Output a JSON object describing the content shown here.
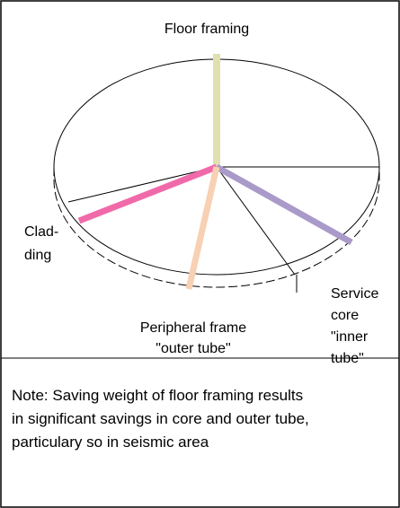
{
  "diagram": {
    "labels": {
      "floor": "Floor framing",
      "cladding": [
        "Clad-",
        "ding"
      ],
      "core": [
        "Service",
        "core",
        "\"inner",
        "tube\""
      ],
      "peripheral": [
        "Peripheral frame",
        "\"outer tube\""
      ]
    },
    "note": [
      "Note: Saving weight of floor framing results",
      "in significant savings in core and outer tube,",
      "particulary so in seismic area"
    ]
  }
}
